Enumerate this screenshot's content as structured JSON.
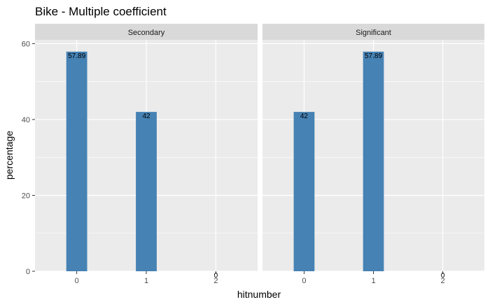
{
  "chart_data": {
    "type": "bar",
    "title": "Bike - Multiple coefficient",
    "xlabel": "hitnumber",
    "ylabel": "percentage",
    "categories": [
      "0",
      "1",
      "2"
    ],
    "ylim": [
      0,
      61
    ],
    "yticks": [
      0,
      20,
      40,
      60
    ],
    "grid": true,
    "bar_color": "#4682B4",
    "panel_background": "#EBEBEB",
    "strip_background": "#D9D9D9",
    "panels": [
      {
        "name": "Secondary",
        "values": [
          57.89,
          42,
          0
        ],
        "labels": [
          "57.89",
          "42",
          "0"
        ]
      },
      {
        "name": "Significant",
        "values": [
          42,
          57.89,
          0
        ],
        "labels": [
          "42",
          "57.89",
          "0"
        ]
      }
    ]
  }
}
